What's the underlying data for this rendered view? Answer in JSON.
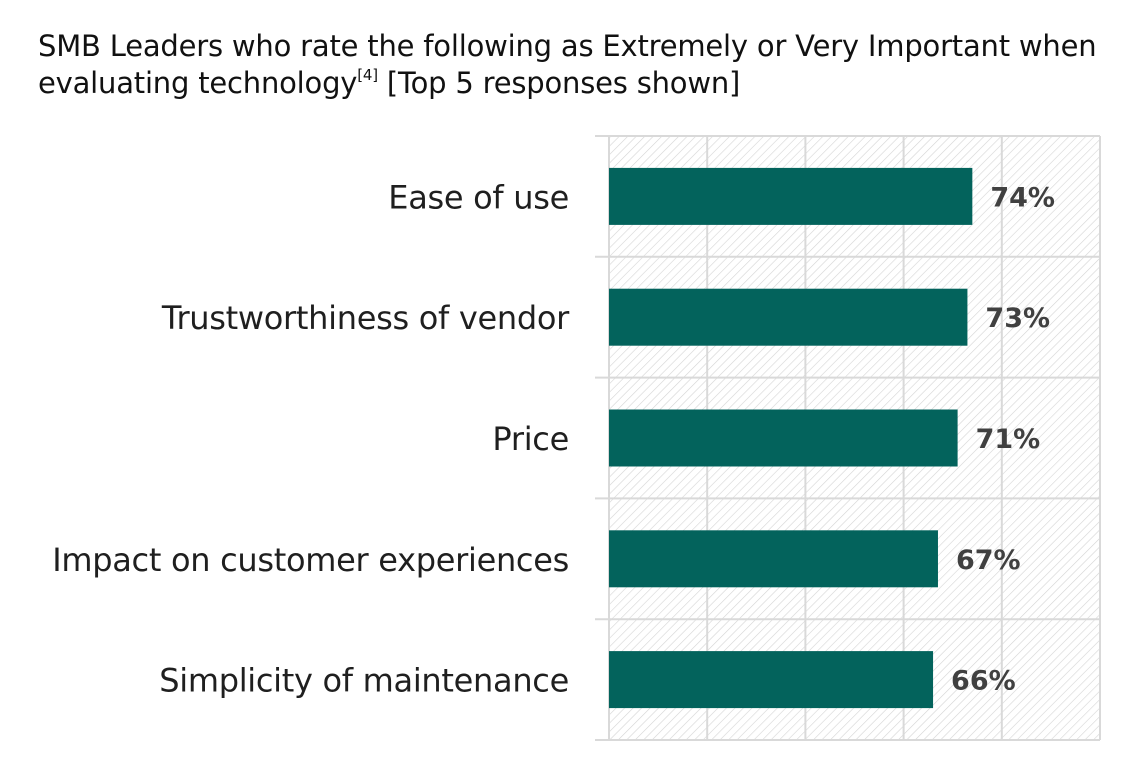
{
  "title": {
    "text": "SMB Leaders who rate the following as Extremely or Very Important when evaluating technology",
    "superscript": "[4]",
    "suffix": " [Top 5 responses shown]"
  },
  "chart_data": {
    "type": "bar",
    "orientation": "horizontal",
    "categories": [
      "Ease of use",
      "Trustworthiness of vendor",
      "Price",
      "Impact on customer experiences",
      "Simplicity of maintenance"
    ],
    "values": [
      74,
      73,
      71,
      67,
      66
    ],
    "value_labels": [
      "74%",
      "73%",
      "71%",
      "67%",
      "66%"
    ],
    "xlim": [
      0,
      100
    ],
    "grid": true,
    "plot_pattern": "diagonal-hatch",
    "bar_color": "#03635c",
    "value_label_color": "#404040",
    "gridline_color": "#d9d9d9"
  }
}
